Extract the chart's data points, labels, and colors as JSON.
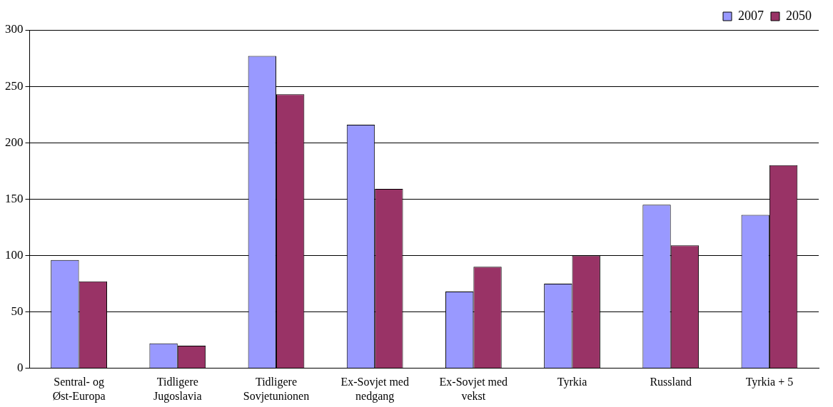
{
  "chart_data": {
    "type": "bar",
    "categories": [
      "Sentral- og Øst-Europa",
      "Tidligere Jugoslavia",
      "Tidligere Sovjetunionen",
      "Ex-Sovjet med nedgang",
      "Ex-Sovjet med vekst",
      "Tyrkia",
      "Russland",
      "Tyrkia + 5"
    ],
    "series": [
      {
        "name": "2007",
        "color": "#9999ff",
        "values": [
          96,
          22,
          277,
          216,
          68,
          75,
          145,
          136
        ]
      },
      {
        "name": "2050",
        "color": "#993366",
        "values": [
          77,
          20,
          243,
          159,
          90,
          100,
          109,
          180
        ]
      }
    ],
    "ylim": [
      0,
      300
    ],
    "yticks": [
      0,
      50,
      100,
      150,
      200,
      250,
      300
    ],
    "grid": "y",
    "legend": "top right"
  }
}
